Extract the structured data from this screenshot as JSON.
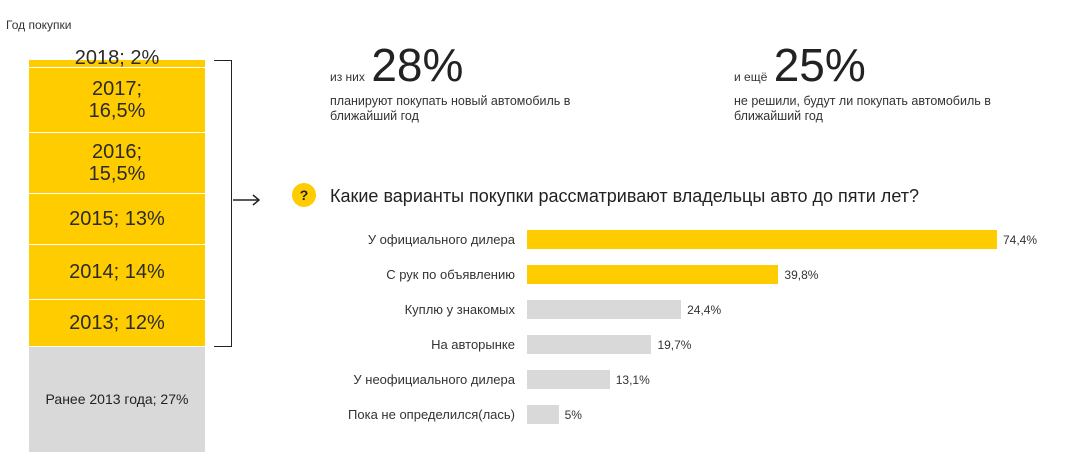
{
  "left_panel": {
    "title": "Год покупки",
    "segments": [
      {
        "year": "2018",
        "share": 2,
        "label": "2018; 2%",
        "color": "#ffcc00"
      },
      {
        "year": "2017",
        "share": 16.5,
        "label": "2017; 16,5%",
        "color": "#ffcc00"
      },
      {
        "year": "2016",
        "share": 15.5,
        "label": "2016; 15,5%",
        "color": "#ffcc00"
      },
      {
        "year": "2015",
        "share": 13,
        "label": "2015; 13%",
        "color": "#ffcc00"
      },
      {
        "year": "2014",
        "share": 14,
        "label": "2014; 14%",
        "color": "#ffcc00"
      },
      {
        "year": "2013",
        "share": 12,
        "label": "2013; 12%",
        "color": "#ffcc00"
      },
      {
        "year": "Ранее 2013 года",
        "share": 27,
        "label": "Ранее 2013 года; 27%",
        "color": "#d9d9d9"
      }
    ]
  },
  "stats": [
    {
      "prefix": "из них",
      "value": "28%",
      "description": "планируют покупать новый автомобиль в ближайший год"
    },
    {
      "prefix": "и ещё",
      "value": "25%",
      "description": "не решили, будут ли покупать автомобиль в ближайший год"
    }
  ],
  "question": {
    "icon": "?",
    "text": "Какие варианты покупки рассматривают владельцы авто до пяти лет?"
  },
  "chart_data": {
    "type": "bar",
    "orientation": "horizontal",
    "title": "Какие варианты покупки рассматривают владельцы авто до пяти лет?",
    "categories": [
      "У официального дилера",
      "С рук по объявлению",
      "Куплю у знакомых",
      "На авторынке",
      "У неофициального дилера",
      "Пока не определился(лась)"
    ],
    "values": [
      74.4,
      39.8,
      24.4,
      19.7,
      13.1,
      5
    ],
    "value_labels": [
      "74,4%",
      "39,8%",
      "24,4%",
      "19,7%",
      "13,1%",
      "5%"
    ],
    "colors": [
      "#ffcc00",
      "#ffcc00",
      "#d9d9d9",
      "#d9d9d9",
      "#d9d9d9",
      "#d9d9d9"
    ],
    "xlim": [
      0,
      100
    ],
    "grid": false
  }
}
